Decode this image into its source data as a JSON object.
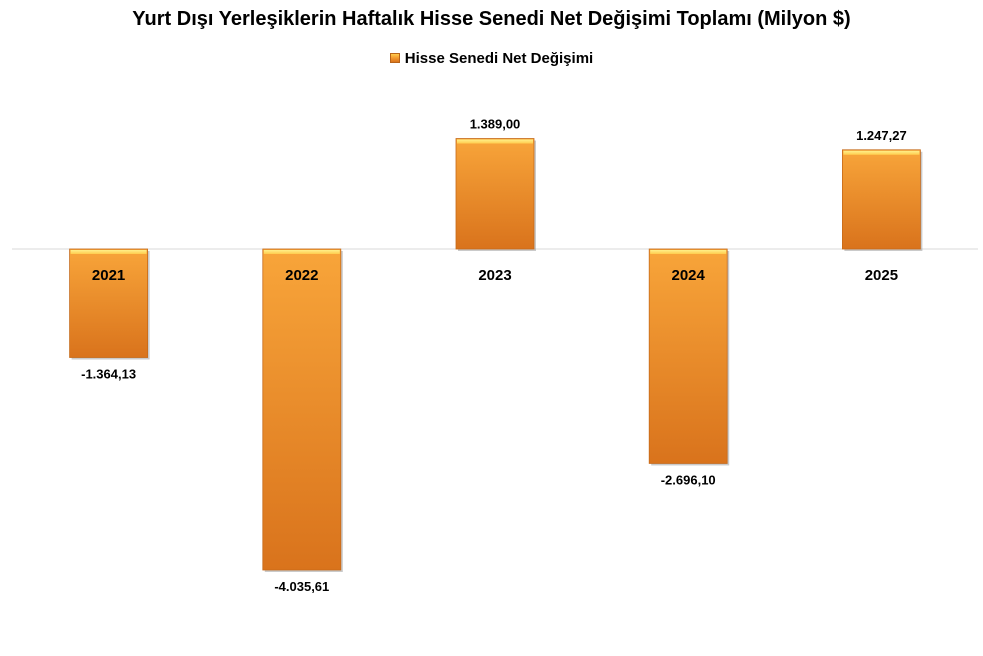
{
  "chart_data": {
    "type": "bar",
    "title": "Yurt Dışı Yerleşiklerin Haftalık Hisse Senedi Net Değişimi Toplamı (Milyon $)",
    "categories": [
      "2021",
      "2022",
      "2023",
      "2024",
      "2025"
    ],
    "series": [
      {
        "name": "Hisse Senedi Net Değişimi",
        "values": [
          -1364.13,
          -4035.61,
          1389.0,
          -2696.1,
          1247.27
        ],
        "labels": [
          "-1.364,13",
          "-4.035,61",
          "1.389,00",
          "-2.696,10",
          "1.247,27"
        ]
      }
    ],
    "legend_position": "top",
    "grid": false,
    "colors": {
      "bar_top": "#ffcc4d",
      "bar_mid": "#f6a033",
      "bar_bottom": "#d9731c",
      "axis": "#d9d9d9"
    }
  }
}
